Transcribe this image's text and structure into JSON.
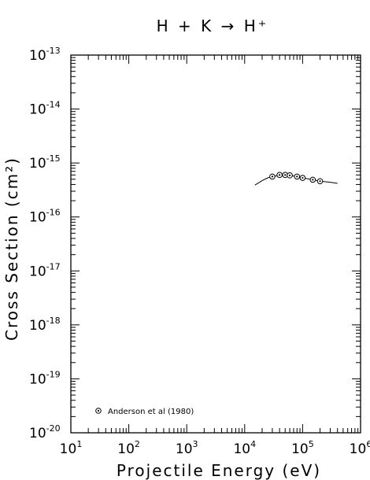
{
  "chart_data": {
    "type": "scatter",
    "title": "H + K → H⁺",
    "xlabel": "Projectile Energy (eV)",
    "ylabel": "Cross Section (cm²)",
    "x_scale": "log",
    "y_scale": "log",
    "xlim": [
      10,
      1000000
    ],
    "ylim": [
      1e-20,
      1e-13
    ],
    "x_tick_labels": [
      {
        "base": "10",
        "exp": "1"
      },
      {
        "base": "10",
        "exp": "2"
      },
      {
        "base": "10",
        "exp": "3"
      },
      {
        "base": "10",
        "exp": "4"
      },
      {
        "base": "10",
        "exp": "5"
      },
      {
        "base": "10",
        "exp": "6"
      }
    ],
    "y_tick_labels": [
      {
        "base": "10",
        "exp": "-13"
      },
      {
        "base": "10",
        "exp": "-14"
      },
      {
        "base": "10",
        "exp": "-15"
      },
      {
        "base": "10",
        "exp": "-16"
      },
      {
        "base": "10",
        "exp": "-17"
      },
      {
        "base": "10",
        "exp": "-18"
      },
      {
        "base": "10",
        "exp": "-19"
      },
      {
        "base": "10",
        "exp": "-20"
      }
    ],
    "legend_position": "bottom-left",
    "series": [
      {
        "name": "Anderson et al (1980)",
        "marker": "circle-dot",
        "points": [
          {
            "x": 30000,
            "y": 5.6e-16
          },
          {
            "x": 40000,
            "y": 6e-16
          },
          {
            "x": 50000,
            "y": 6e-16
          },
          {
            "x": 60000,
            "y": 5.9e-16
          },
          {
            "x": 80000,
            "y": 5.6e-16
          },
          {
            "x": 100000,
            "y": 5.3e-16
          },
          {
            "x": 150000,
            "y": 4.9e-16
          },
          {
            "x": 200000,
            "y": 4.6e-16
          }
        ]
      }
    ],
    "fit_curve": {
      "points": [
        {
          "x": 15000,
          "y": 3.9e-16
        },
        {
          "x": 20000,
          "y": 4.7e-16
        },
        {
          "x": 25000,
          "y": 5.3e-16
        },
        {
          "x": 30000,
          "y": 5.6e-16
        },
        {
          "x": 40000,
          "y": 5.9e-16
        },
        {
          "x": 50000,
          "y": 6e-16
        },
        {
          "x": 60000,
          "y": 5.9e-16
        },
        {
          "x": 80000,
          "y": 5.6e-16
        },
        {
          "x": 100000,
          "y": 5.3e-16
        },
        {
          "x": 150000,
          "y": 4.9e-16
        },
        {
          "x": 200000,
          "y": 4.6e-16
        },
        {
          "x": 300000,
          "y": 4.4e-16
        },
        {
          "x": 400000,
          "y": 4.2e-16
        }
      ]
    }
  }
}
